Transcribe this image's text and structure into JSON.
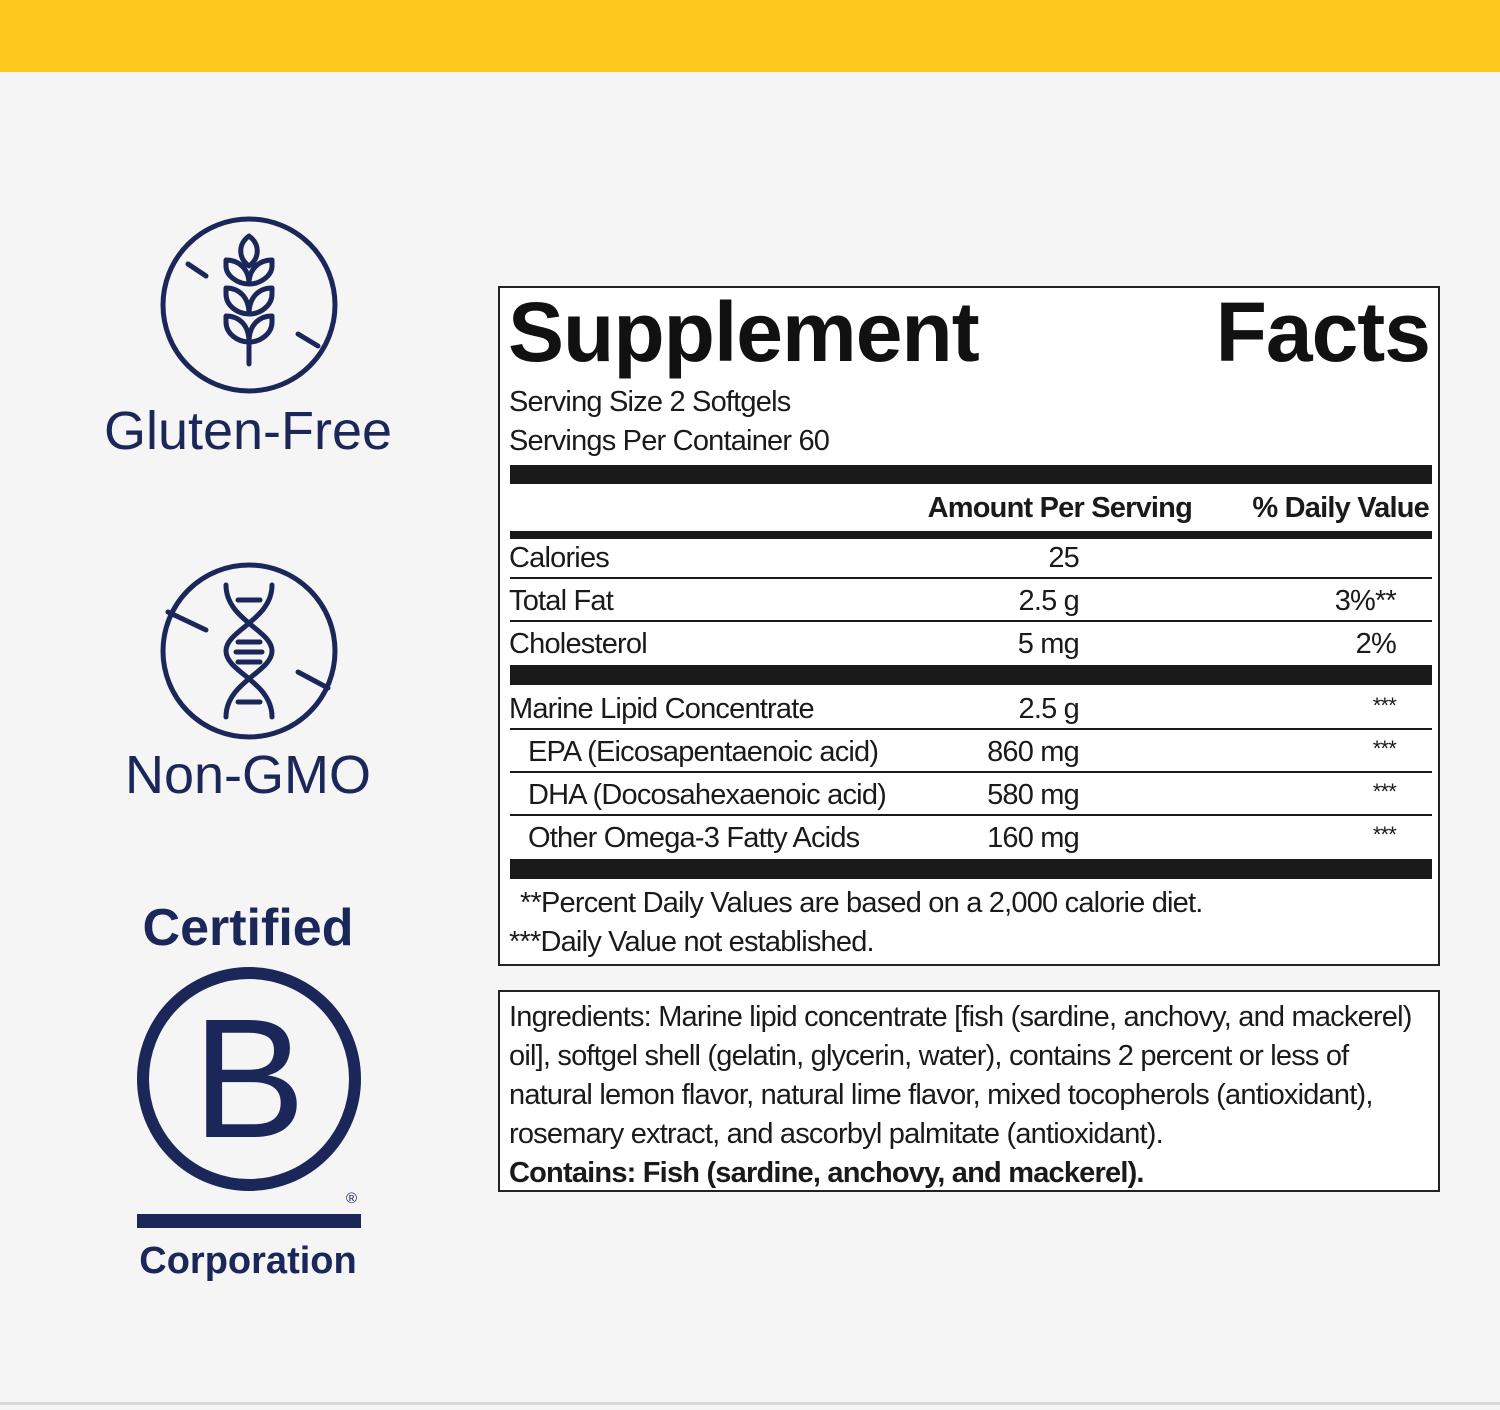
{
  "badges": {
    "gluten_free": "Gluten-Free",
    "non_gmo": "Non-GMO",
    "bcorp_top": "Certified",
    "bcorp_letter": "B",
    "bcorp_reg": "®",
    "bcorp_bottom": "Corporation"
  },
  "colors": {
    "banner": "#fdc91c",
    "navy": "#1b2759",
    "background": "#f5f5f5"
  },
  "facts": {
    "title_1": "Supplement",
    "title_2": "Facts",
    "serving_size": "Serving Size 2 Softgels",
    "servings_per_container": "Servings Per Container 60",
    "col_amount": "Amount Per Serving",
    "col_dv": "% Daily Value",
    "rows": [
      {
        "name": "Calories",
        "amount": "25",
        "dv": ""
      },
      {
        "name": "Total Fat",
        "amount": "2.5 g",
        "dv": "3%**"
      },
      {
        "name": "Cholesterol",
        "amount": "5 mg",
        "dv": "2%"
      },
      {
        "name": "Marine Lipid Concentrate",
        "amount": "2.5 g",
        "dv": "***"
      },
      {
        "name": "EPA (Eicosapentaenoic acid)",
        "amount": "860 mg",
        "dv": "***"
      },
      {
        "name": "DHA (Docosahexaenoic acid)",
        "amount": "580 mg",
        "dv": "***"
      },
      {
        "name": "Other Omega-3 Fatty Acids",
        "amount": "160 mg",
        "dv": "***"
      }
    ],
    "footnote_1": "**Percent Daily Values are based on a 2,000 calorie diet.",
    "footnote_2": "***Daily Value not established."
  },
  "ingredients": {
    "text": "Ingredients: Marine lipid concentrate [fish (sardine, anchovy, and mackerel) oil], softgel shell (gelatin, glycerin, water), contains 2 percent or less of natural lemon flavor, natural lime flavor, mixed tocopherols (antioxidant), rosemary extract, and ascorbyl palmitate (antioxidant).",
    "contains": "Contains: Fish (sardine, anchovy, and mackerel)."
  }
}
